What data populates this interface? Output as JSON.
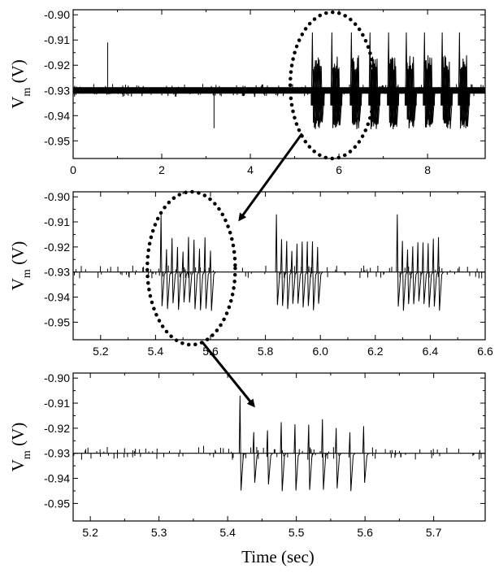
{
  "chart_data": [
    {
      "type": "line",
      "ylabel_main": "V",
      "ylabel_sub": "m",
      "ylabel_unit": " (V)",
      "xlabel": "",
      "xlim": [
        0,
        9.3
      ],
      "ylim": [
        -0.957,
        -0.898
      ],
      "xticks": [
        0,
        2,
        4,
        6,
        8
      ],
      "xtick_labels": [
        "0",
        "2",
        "4",
        "6",
        "8"
      ],
      "yticks": [
        -0.9,
        -0.91,
        -0.92,
        -0.93,
        -0.94,
        -0.95
      ],
      "ytick_labels": [
        "-0.90",
        "-0.91",
        "-0.92",
        "-0.93",
        "-0.94",
        "-0.95"
      ],
      "grid": false,
      "baseline": -0.93,
      "bursts": [
        {
          "start": 5.4,
          "end": 5.6,
          "spikes": 10
        },
        {
          "start": 5.84,
          "end": 6.0,
          "spikes": 9
        },
        {
          "start": 6.28,
          "end": 6.44,
          "spikes": 9
        },
        {
          "start": 6.7,
          "end": 6.86,
          "spikes": 9
        },
        {
          "start": 7.12,
          "end": 7.28,
          "spikes": 9
        },
        {
          "start": 7.52,
          "end": 7.68,
          "spikes": 9
        },
        {
          "start": 7.93,
          "end": 8.09,
          "spikes": 9
        },
        {
          "start": 8.33,
          "end": 8.49,
          "spikes": 9
        },
        {
          "start": 8.72,
          "end": 8.88,
          "spikes": 9
        }
      ],
      "isolated_spikes": [
        {
          "x": 0.78,
          "y": -0.911
        },
        {
          "x": 3.18,
          "y": -0.945
        }
      ],
      "highlight_ellipse": {
        "center_x": 5.85,
        "half_width": 0.95,
        "y_top": -0.899,
        "y_bottom": -0.957
      }
    },
    {
      "type": "line",
      "ylabel_main": "V",
      "ylabel_sub": "m",
      "ylabel_unit": " (V)",
      "xlabel": "",
      "xlim": [
        5.1,
        6.6
      ],
      "ylim": [
        -0.957,
        -0.898
      ],
      "xticks": [
        5.2,
        5.4,
        5.6,
        5.8,
        6.0,
        6.2,
        6.4,
        6.6
      ],
      "xtick_labels": [
        "5.2",
        "5.4",
        "5.6",
        "5.8",
        "6.0",
        "6.2",
        "6.4",
        "6.6"
      ],
      "yticks": [
        -0.9,
        -0.91,
        -0.92,
        -0.93,
        -0.94,
        -0.95
      ],
      "ytick_labels": [
        "-0.90",
        "-0.91",
        "-0.92",
        "-0.93",
        "-0.94",
        "-0.95"
      ],
      "grid": false,
      "baseline": -0.93,
      "bursts": [
        {
          "start": 5.42,
          "end": 5.6,
          "spikes": 10
        },
        {
          "start": 5.84,
          "end": 5.99,
          "spikes": 9
        },
        {
          "start": 6.28,
          "end": 6.43,
          "spikes": 9
        }
      ],
      "highlight_ellipse": {
        "center_x": 5.53,
        "half_width": 0.16,
        "y_top": -0.898,
        "y_bottom": -0.959
      }
    },
    {
      "type": "line",
      "ylabel_main": "V",
      "ylabel_sub": "m",
      "ylabel_unit": " (V)",
      "xlabel": "Time (sec)",
      "xlim": [
        5.175,
        5.775
      ],
      "ylim": [
        -0.957,
        -0.898
      ],
      "xticks": [
        5.2,
        5.3,
        5.4,
        5.5,
        5.6,
        5.7
      ],
      "xtick_labels": [
        "5.2",
        "5.3",
        "5.4",
        "5.5",
        "5.6",
        "5.7"
      ],
      "yticks": [
        -0.9,
        -0.91,
        -0.92,
        -0.93,
        -0.94,
        -0.95
      ],
      "ytick_labels": [
        "-0.90",
        "-0.91",
        "-0.92",
        "-0.93",
        "-0.94",
        "-0.95"
      ],
      "grid": false,
      "baseline": -0.93,
      "bursts": [
        {
          "start": 5.418,
          "end": 5.598,
          "spikes": 10
        }
      ],
      "isolated_spikes": [
        {
          "x": 5.365,
          "y": -0.927
        }
      ]
    }
  ]
}
